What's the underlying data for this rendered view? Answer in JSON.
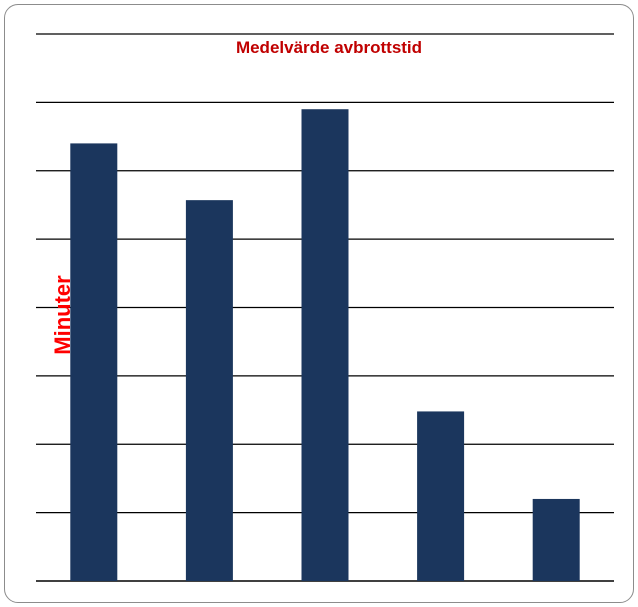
{
  "chart_data": {
    "type": "bar",
    "title": "Medelvärde avbrottstid",
    "xlabel": "",
    "ylabel": "Minuter",
    "categories": [
      "",
      "",
      "",
      "",
      ""
    ],
    "values": [
      6.4,
      5.57,
      6.9,
      2.48,
      1.2
    ],
    "ylim": [
      0,
      8
    ],
    "grid": true,
    "legend": "none",
    "colors": {
      "bar": "#1b365d",
      "grid": "#000000",
      "title": "#c00000",
      "ylabel": "#ff0000"
    }
  }
}
